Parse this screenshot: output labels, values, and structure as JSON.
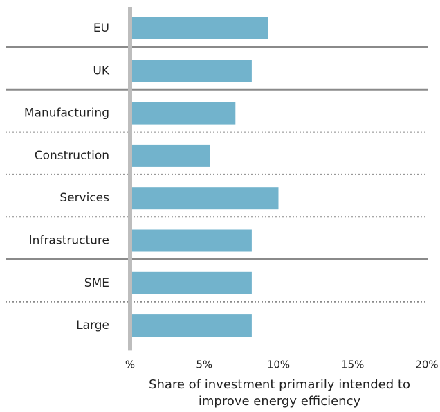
{
  "chart_data": {
    "type": "hbar",
    "categories": [
      "EU",
      "UK",
      "Manufacturing",
      "Construction",
      "Services",
      "Infrastructure",
      "SME",
      "Large"
    ],
    "values": [
      9.3,
      8.2,
      7.1,
      5.4,
      10.0,
      8.2,
      8.2,
      8.2
    ],
    "color": "#72b3cc",
    "separators": [
      "solid",
      "solid",
      "dotted",
      "dotted",
      "dotted",
      "solid",
      "dotted"
    ],
    "xlim": [
      0,
      20
    ],
    "xticks": [
      {
        "value": 0,
        "label": "%"
      },
      {
        "value": 5,
        "label": "5%"
      },
      {
        "value": 10,
        "label": "10%"
      },
      {
        "value": 15,
        "label": "15%"
      },
      {
        "value": 20,
        "label": "20%"
      }
    ],
    "xlabel": [
      "Share of investment primarily intended to",
      "improve energy efficiency"
    ]
  }
}
